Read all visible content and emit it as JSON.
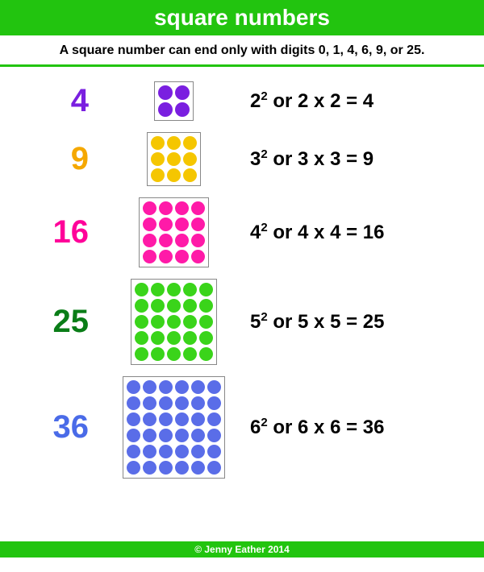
{
  "colors": {
    "green_bar": "#22c40f",
    "white": "#ffffff",
    "black": "#000000"
  },
  "title": {
    "text": "square numbers",
    "fontsize": 28,
    "color": "#ffffff",
    "bg": "#22c40f"
  },
  "subtitle": {
    "text": "A square number can end only with digits 0, 1, 4, 6, 9, or 25.",
    "fontsize": 16,
    "color": "#000000"
  },
  "divider": {
    "color": "#22c40f",
    "height": 3
  },
  "rows": [
    {
      "value": "4",
      "value_color": "#7a1fe0",
      "n": 2,
      "dot_color": "#7a1fe0",
      "dot_size": 18,
      "base": "2",
      "exp": "2",
      "rest": " or 2 x 2 = 4"
    },
    {
      "value": "9",
      "value_color": "#f5a800",
      "n": 3,
      "dot_color": "#f5c600",
      "dot_size": 17,
      "base": "3",
      "exp": "2",
      "rest": " or 3 x 3 = 9"
    },
    {
      "value": "16",
      "value_color": "#ff0099",
      "n": 4,
      "dot_color": "#ff1aa8",
      "dot_size": 17,
      "base": "4",
      "exp": "2",
      "rest": " or 4 x 4 = 16"
    },
    {
      "value": "25",
      "value_color": "#0a7d17",
      "n": 5,
      "dot_color": "#3ad41a",
      "dot_size": 17,
      "base": "5",
      "exp": "2",
      "rest": " or 5 x 5 = 25"
    },
    {
      "value": "36",
      "value_color": "#4a6be8",
      "n": 6,
      "dot_color": "#5a6de8",
      "dot_size": 17,
      "base": "6",
      "exp": "2",
      "rest": " or 6 x 6 = 36"
    }
  ],
  "footer": {
    "text": "© Jenny Eather 2014",
    "bg": "#22c40f",
    "color": "#ffffff"
  }
}
